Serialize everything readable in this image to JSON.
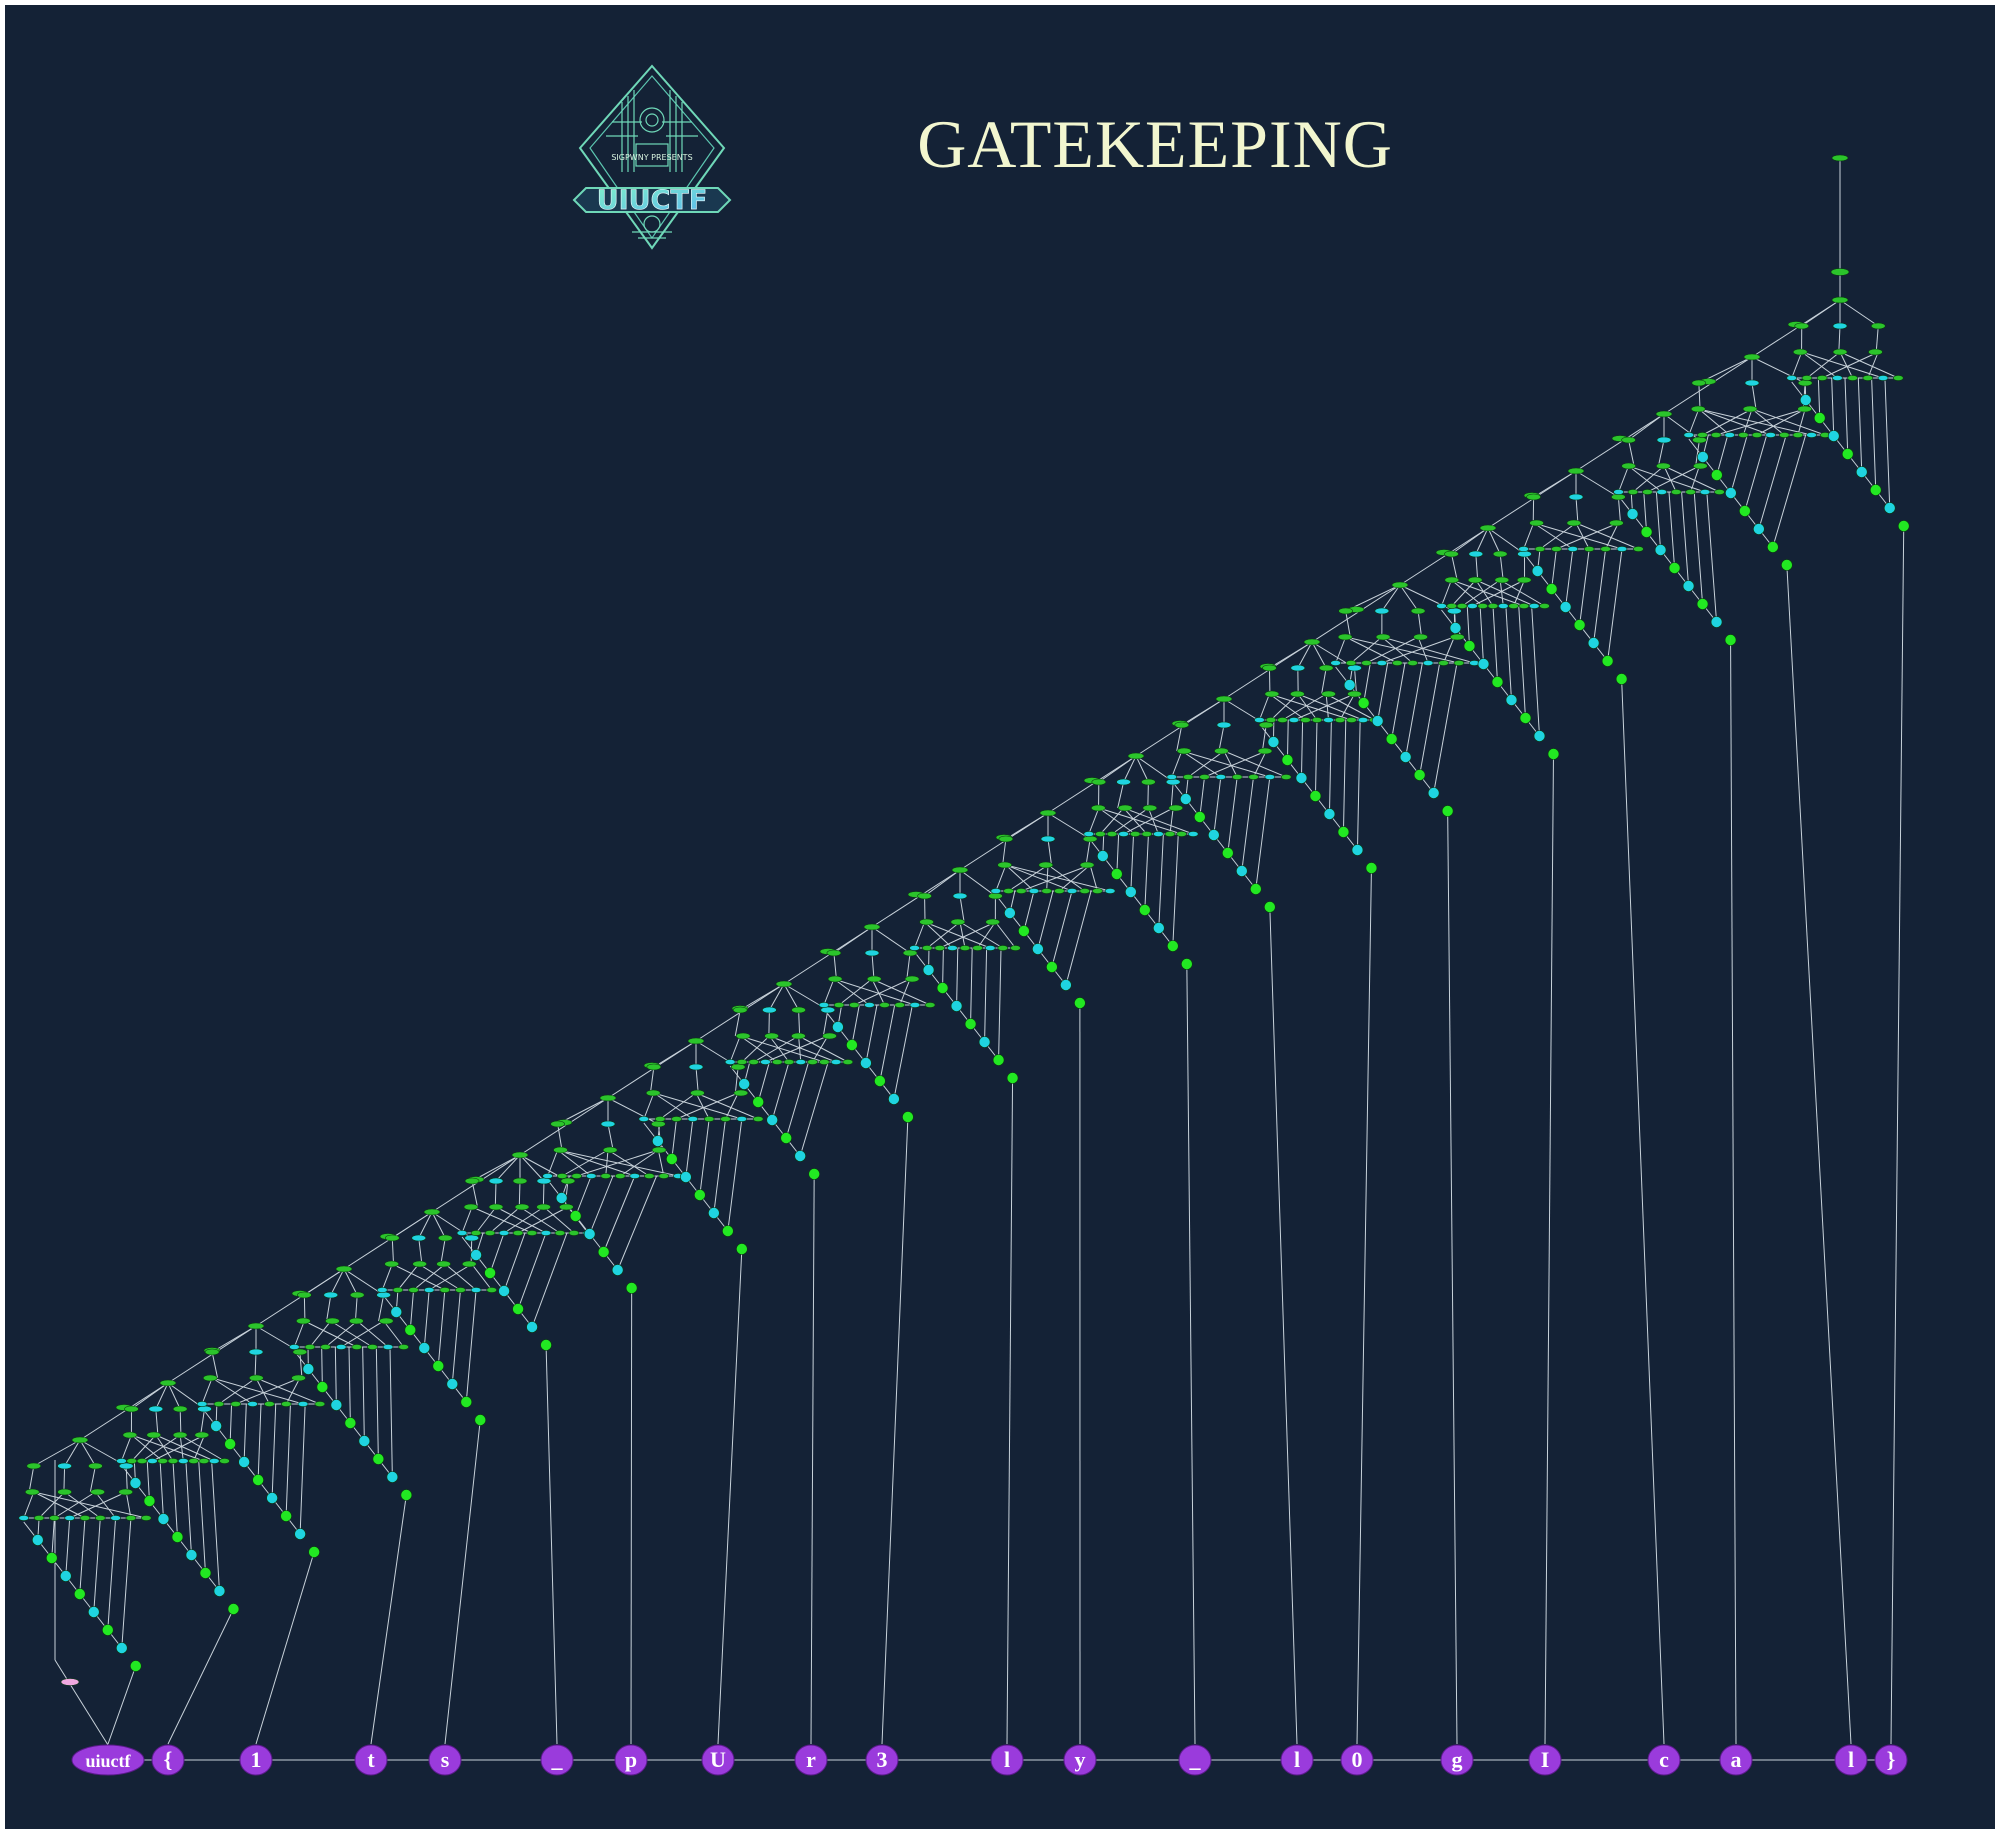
{
  "title": "GATEKEEPING",
  "logo": {
    "text": "UIUCTF",
    "sub": "SIGPWNY PRESENTS"
  },
  "tokens": [
    "uiuctf",
    "{",
    "1",
    "t",
    "s",
    "_",
    "p",
    "U",
    "r",
    "3",
    "l",
    "y",
    "_",
    "l",
    "0",
    "g",
    "I",
    "c",
    "a",
    "l",
    "}"
  ],
  "colors": {
    "background": "#142236",
    "green_node": "#2bc42b",
    "bright_green_node": "#22e822",
    "cyan_node": "#1fd4e0",
    "token_node": "#9a3bdc",
    "pink_node": "#f0a8e0",
    "edge": "#c8d2da",
    "title": "#f2f6cf"
  }
}
